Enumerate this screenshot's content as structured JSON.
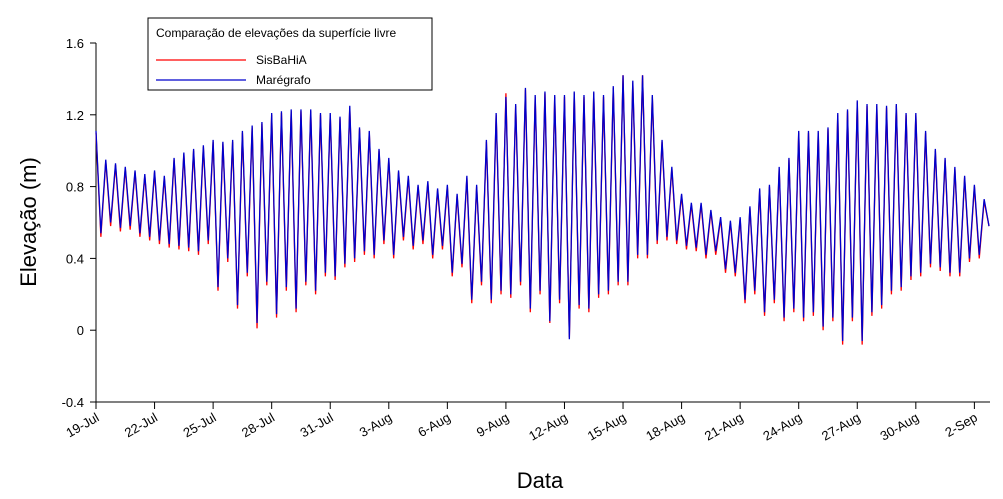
{
  "chart_data": {
    "type": "line",
    "xlabel": "Data",
    "ylabel": "Elevação (m)",
    "legend_title": "Comparação de elevações da superfície livre",
    "x": [
      0,
      0.25,
      0.5,
      0.75,
      1,
      1.25,
      1.5,
      1.75,
      2,
      2.25,
      2.5,
      2.75,
      3,
      3.25,
      3.5,
      3.75,
      4,
      4.25,
      4.5,
      4.75,
      5,
      5.25,
      5.5,
      5.75,
      6,
      6.25,
      6.5,
      6.75,
      7,
      7.25,
      7.5,
      7.75,
      8,
      8.25,
      8.5,
      8.75,
      9,
      9.25,
      9.5,
      9.75,
      10,
      10.25,
      10.5,
      10.75,
      11,
      11.25,
      11.5,
      11.75,
      12,
      12.25,
      12.5,
      12.75,
      13,
      13.25,
      13.5,
      13.75,
      14,
      14.25,
      14.5,
      14.75,
      15,
      15.25,
      15.5,
      15.75,
      16,
      16.25,
      16.5,
      16.75,
      17,
      17.25,
      17.5,
      17.75,
      18,
      18.25,
      18.5,
      18.75,
      19,
      19.25,
      19.5,
      19.75,
      20,
      20.25,
      20.5,
      20.75,
      21,
      21.25,
      21.5,
      21.75,
      22,
      22.25,
      22.5,
      22.75,
      23,
      23.25,
      23.5,
      23.75,
      24,
      24.25,
      24.5,
      24.75,
      25,
      25.25,
      25.5,
      25.75,
      26,
      26.25,
      26.5,
      26.75,
      27,
      27.25,
      27.5,
      27.75,
      28,
      28.25,
      28.5,
      28.75,
      29,
      29.25,
      29.5,
      29.75,
      30,
      30.25,
      30.5,
      30.75,
      31,
      31.25,
      31.5,
      31.75,
      32,
      32.25,
      32.5,
      32.75,
      33,
      33.25,
      33.5,
      33.75,
      34,
      34.25,
      34.5,
      34.75,
      35,
      35.25,
      35.5,
      35.75,
      36,
      36.25,
      36.5,
      36.75,
      37,
      37.25,
      37.5,
      37.75,
      38,
      38.25,
      38.5,
      38.75,
      39,
      39.25,
      39.5,
      39.75,
      40,
      40.25,
      40.5,
      40.75,
      41,
      41.25,
      41.5,
      41.75,
      42,
      42.25,
      42.5,
      42.75,
      43,
      43.25,
      43.5,
      43.75,
      44,
      44.25,
      44.5,
      44.75,
      45,
      45.25,
      45.5,
      45.75
    ],
    "series": [
      {
        "name": "SisBaHiA",
        "color": "#ff0000",
        "values": [
          1.1,
          0.52,
          0.94,
          0.58,
          0.92,
          0.55,
          0.9,
          0.56,
          0.88,
          0.52,
          0.86,
          0.5,
          0.88,
          0.48,
          0.85,
          0.46,
          0.95,
          0.45,
          0.98,
          0.44,
          1.0,
          0.42,
          1.02,
          0.48,
          1.05,
          0.22,
          1.04,
          0.38,
          1.05,
          0.12,
          1.1,
          0.3,
          1.13,
          0.01,
          1.15,
          0.25,
          1.2,
          0.07,
          1.21,
          0.22,
          1.22,
          0.1,
          1.22,
          0.25,
          1.22,
          0.2,
          1.2,
          0.3,
          1.2,
          0.28,
          1.18,
          0.35,
          1.24,
          0.38,
          1.12,
          0.42,
          1.1,
          0.4,
          1.0,
          0.48,
          0.95,
          0.4,
          0.88,
          0.5,
          0.85,
          0.45,
          0.8,
          0.48,
          0.82,
          0.4,
          0.78,
          0.45,
          0.8,
          0.3,
          0.75,
          0.35,
          0.85,
          0.15,
          0.8,
          0.25,
          1.05,
          0.15,
          1.2,
          0.2,
          1.32,
          0.18,
          1.25,
          0.25,
          1.34,
          0.1,
          1.3,
          0.2,
          1.32,
          0.04,
          1.3,
          0.15,
          1.3,
          -0.04,
          1.32,
          0.12,
          1.3,
          0.1,
          1.32,
          0.18,
          1.3,
          0.2,
          1.35,
          0.25,
          1.42,
          0.25,
          1.38,
          0.4,
          1.42,
          0.4,
          1.3,
          0.48,
          1.05,
          0.5,
          0.9,
          0.48,
          0.75,
          0.45,
          0.7,
          0.44,
          0.7,
          0.4,
          0.66,
          0.42,
          0.62,
          0.32,
          0.6,
          0.3,
          0.62,
          0.15,
          0.68,
          0.2,
          0.78,
          0.08,
          0.8,
          0.15,
          0.9,
          0.05,
          0.95,
          0.1,
          1.1,
          0.05,
          1.1,
          0.08,
          1.1,
          0.0,
          1.12,
          0.05,
          1.2,
          -0.08,
          1.22,
          0.05,
          1.27,
          -0.08,
          1.25,
          0.08,
          1.25,
          0.12,
          1.24,
          0.2,
          1.25,
          0.22,
          1.2,
          0.28,
          1.2,
          0.3,
          1.1,
          0.35,
          1.0,
          0.33,
          0.95,
          0.3,
          0.9,
          0.3,
          0.85,
          0.38,
          0.8,
          0.4,
          0.72,
          0.58
        ]
      },
      {
        "name": "Marégrafo",
        "color": "#0000cc",
        "values": [
          1.11,
          0.54,
          0.95,
          0.6,
          0.93,
          0.57,
          0.91,
          0.58,
          0.89,
          0.54,
          0.87,
          0.52,
          0.89,
          0.5,
          0.86,
          0.48,
          0.96,
          0.47,
          0.99,
          0.46,
          1.01,
          0.44,
          1.03,
          0.5,
          1.06,
          0.24,
          1.05,
          0.4,
          1.06,
          0.14,
          1.11,
          0.32,
          1.14,
          0.04,
          1.16,
          0.27,
          1.21,
          0.09,
          1.22,
          0.24,
          1.23,
          0.12,
          1.23,
          0.27,
          1.23,
          0.22,
          1.21,
          0.32,
          1.21,
          0.3,
          1.19,
          0.37,
          1.25,
          0.4,
          1.13,
          0.44,
          1.11,
          0.42,
          1.01,
          0.5,
          0.96,
          0.42,
          0.89,
          0.52,
          0.86,
          0.47,
          0.81,
          0.5,
          0.83,
          0.42,
          0.79,
          0.47,
          0.81,
          0.32,
          0.76,
          0.37,
          0.86,
          0.17,
          0.81,
          0.27,
          1.06,
          0.17,
          1.21,
          0.22,
          1.3,
          0.2,
          1.26,
          0.27,
          1.35,
          0.12,
          1.31,
          0.22,
          1.33,
          0.05,
          1.31,
          0.17,
          1.31,
          -0.05,
          1.33,
          0.14,
          1.31,
          0.12,
          1.33,
          0.2,
          1.31,
          0.22,
          1.36,
          0.27,
          1.42,
          0.27,
          1.39,
          0.42,
          1.42,
          0.42,
          1.31,
          0.5,
          1.06,
          0.52,
          0.91,
          0.5,
          0.76,
          0.47,
          0.71,
          0.46,
          0.71,
          0.42,
          0.67,
          0.44,
          0.63,
          0.34,
          0.61,
          0.32,
          0.63,
          0.17,
          0.69,
          0.22,
          0.79,
          0.1,
          0.81,
          0.17,
          0.91,
          0.07,
          0.96,
          0.12,
          1.11,
          0.07,
          1.11,
          0.1,
          1.11,
          0.02,
          1.13,
          0.07,
          1.21,
          -0.06,
          1.23,
          0.07,
          1.28,
          -0.06,
          1.26,
          0.1,
          1.26,
          0.14,
          1.25,
          0.22,
          1.26,
          0.24,
          1.21,
          0.3,
          1.21,
          0.32,
          1.11,
          0.37,
          1.01,
          0.35,
          0.96,
          0.32,
          0.91,
          0.32,
          0.86,
          0.4,
          0.81,
          0.42,
          0.73,
          0.58
        ]
      }
    ],
    "xlim": [
      0,
      45.8
    ],
    "xticks": [
      {
        "value": 0,
        "label": "19-Jul"
      },
      {
        "value": 3,
        "label": "22-Jul"
      },
      {
        "value": 6,
        "label": "25-Jul"
      },
      {
        "value": 9,
        "label": "28-Jul"
      },
      {
        "value": 12,
        "label": "31-Jul"
      },
      {
        "value": 15,
        "label": "3-Aug"
      },
      {
        "value": 18,
        "label": "6-Aug"
      },
      {
        "value": 21,
        "label": "9-Aug"
      },
      {
        "value": 24,
        "label": "12-Aug"
      },
      {
        "value": 27,
        "label": "15-Aug"
      },
      {
        "value": 30,
        "label": "18-Aug"
      },
      {
        "value": 33,
        "label": "21-Aug"
      },
      {
        "value": 36,
        "label": "24-Aug"
      },
      {
        "value": 39,
        "label": "27-Aug"
      },
      {
        "value": 42,
        "label": "30-Aug"
      },
      {
        "value": 45,
        "label": "2-Sep"
      }
    ],
    "ylim": [
      -0.4,
      1.6
    ],
    "yticks": [
      -0.4,
      0,
      0.4,
      0.8,
      1.2,
      1.6
    ],
    "grid": false
  }
}
